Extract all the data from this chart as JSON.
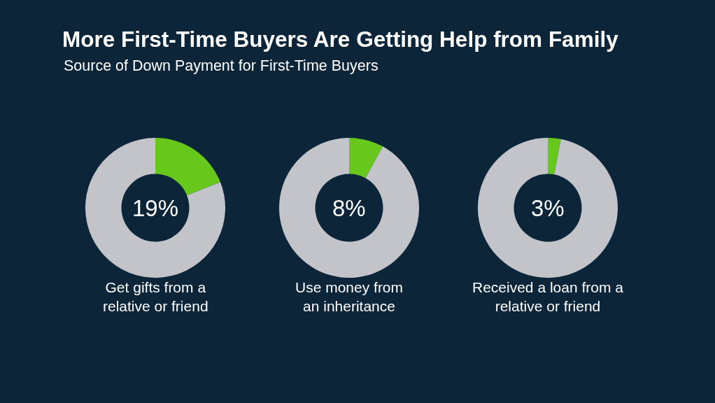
{
  "chart_data": [
    {
      "type": "donut",
      "title": "More First-Time Buyers Are Getting Help from Family",
      "subtitle": "Source of Down Payment for First-Time Buyers",
      "categories": [
        null,
        null
      ],
      "values": [
        19,
        81
      ],
      "colors": [
        "#67c71b",
        "#c2c4ca"
      ],
      "annotations": [
        "19%"
      ],
      "xlabel": "Get gifts from a\nrelative or friend"
    },
    {
      "type": "donut",
      "categories": [
        null,
        null
      ],
      "values": [
        8,
        92
      ],
      "colors": [
        "#67c71b",
        "#c2c4ca"
      ],
      "annotations": [
        "8%"
      ],
      "xlabel": "Use money from\nan inheritance"
    },
    {
      "type": "donut",
      "categories": [
        null,
        null
      ],
      "values": [
        3,
        97
      ],
      "colors": [
        "#67c71b",
        "#c2c4ca"
      ],
      "annotations": [
        "3%"
      ],
      "xlabel": "Received a loan from a\nrelative or friend"
    }
  ]
}
